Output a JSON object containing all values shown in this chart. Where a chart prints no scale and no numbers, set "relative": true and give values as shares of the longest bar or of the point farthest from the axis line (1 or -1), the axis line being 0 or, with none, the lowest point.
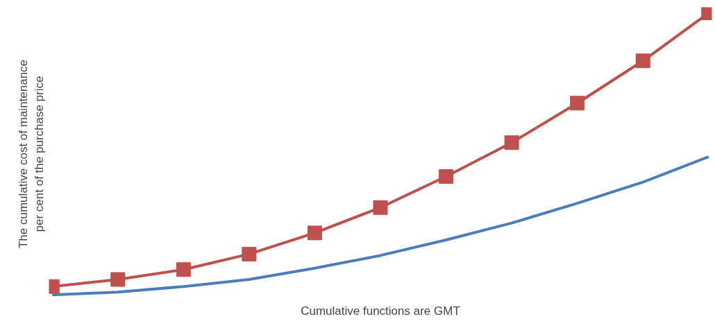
{
  "chart_data": {
    "type": "line",
    "relative": true,
    "xlabel": "Cumulative functions are GMT",
    "ylabel": "The cumulative cost of maintenance per cent of the purchase price",
    "categories": [
      null,
      null,
      null,
      null,
      null,
      null,
      null,
      null,
      null,
      null,
      null
    ],
    "line_style": "solid",
    "series": [
      {
        "color": "#c0504d",
        "marker": "square",
        "values": [
          0.03,
          0.055,
          0.09,
          0.145,
          0.22,
          0.31,
          0.42,
          0.54,
          0.68,
          0.83,
          1.0
        ]
      },
      {
        "color": "#4a7ebb",
        "marker": "none",
        "values": [
          0,
          0.01,
          0.03,
          0.055,
          0.095,
          0.14,
          0.195,
          0.255,
          0.325,
          0.4,
          0.49
        ]
      }
    ]
  }
}
